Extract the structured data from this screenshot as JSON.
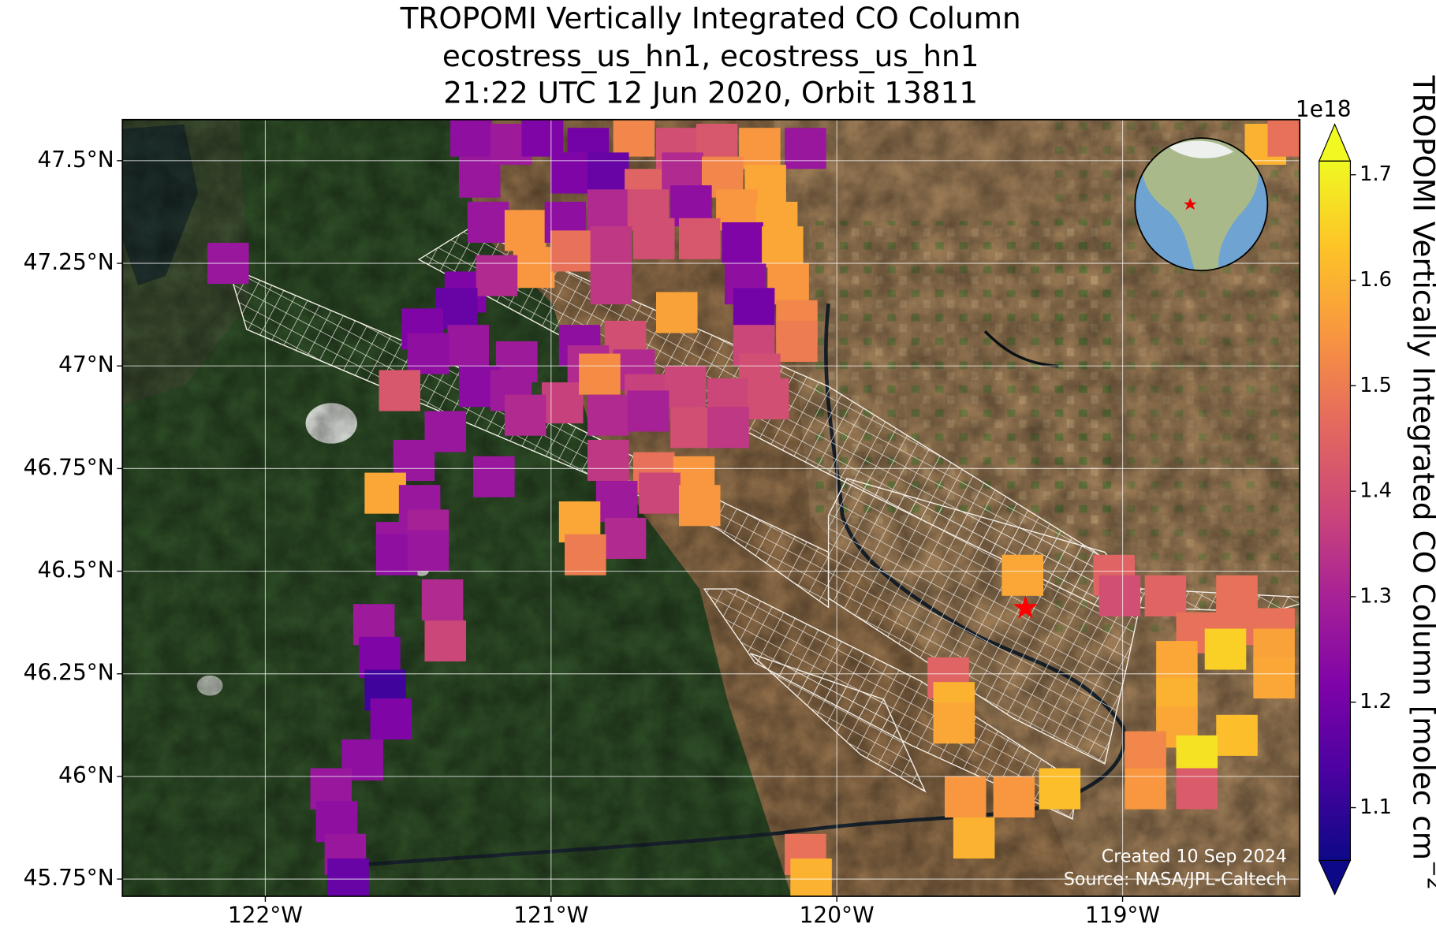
{
  "title": [
    "TROPOMI Vertically Integrated CO Column",
    "ecostress_us_hn1, ecostress_us_hn1",
    "21:22 UTC 12 Jun 2020, Orbit 13811"
  ],
  "map": {
    "xlim": [
      -122.5,
      -118.38
    ],
    "ylim": [
      45.708,
      47.6
    ],
    "xticks": [
      {
        "value": -122,
        "label": "122°W"
      },
      {
        "value": -121,
        "label": "121°W"
      },
      {
        "value": -120,
        "label": "120°W"
      },
      {
        "value": -119,
        "label": "119°W"
      }
    ],
    "yticks": [
      {
        "value": 45.75,
        "label": "45.75°N"
      },
      {
        "value": 46,
        "label": "46°N"
      },
      {
        "value": 46.25,
        "label": "46.25°N"
      },
      {
        "value": 46.5,
        "label": "46.5°N"
      },
      {
        "value": 46.75,
        "label": "46.75°N"
      },
      {
        "value": 47,
        "label": "47°N"
      },
      {
        "value": 47.25,
        "label": "47.25°N"
      },
      {
        "value": 47.5,
        "label": "47.5°N"
      }
    ],
    "grid": true
  },
  "colorbar": {
    "label": "TROPOMI Vertically Integrated CO Column [molec cm",
    "label_exponent": "−2",
    "multiplier": "1e18",
    "colormap": "plasma",
    "lim": [
      1.05,
      1.713
    ],
    "ticks": [
      1.1,
      1.2,
      1.3,
      1.4,
      1.5,
      1.6,
      1.7
    ]
  },
  "site": {
    "lon": -119.34,
    "lat": 46.41,
    "color": "#ff0000"
  },
  "footer": [
    "Created 10 Sep 2024",
    "Source: NASA/JPL-Caltech"
  ],
  "cells": [
    [
      -122.13,
      47.25,
      1.27
    ],
    [
      -121.28,
      47.56,
      1.25
    ],
    [
      -121.25,
      47.46,
      1.27
    ],
    [
      -121.14,
      47.54,
      1.28
    ],
    [
      -121.03,
      47.56,
      1.22
    ],
    [
      -120.87,
      47.53,
      1.2
    ],
    [
      -120.71,
      47.56,
      1.52
    ],
    [
      -120.56,
      47.53,
      1.4
    ],
    [
      -120.42,
      47.54,
      1.42
    ],
    [
      -120.27,
      47.53,
      1.55
    ],
    [
      -120.11,
      47.53,
      1.27
    ],
    [
      -120.93,
      47.47,
      1.22
    ],
    [
      -120.8,
      47.47,
      1.18
    ],
    [
      -120.67,
      47.43,
      1.45
    ],
    [
      -120.54,
      47.47,
      1.32
    ],
    [
      -120.4,
      47.46,
      1.52
    ],
    [
      -120.25,
      47.44,
      1.58
    ],
    [
      -121.22,
      47.35,
      1.27
    ],
    [
      -121.09,
      47.33,
      1.55
    ],
    [
      -120.95,
      47.35,
      1.25
    ],
    [
      -120.8,
      47.38,
      1.32
    ],
    [
      -120.66,
      47.38,
      1.4
    ],
    [
      -120.51,
      47.39,
      1.25
    ],
    [
      -120.35,
      47.38,
      1.55
    ],
    [
      -120.21,
      47.35,
      1.58
    ],
    [
      -121.06,
      47.24,
      1.55
    ],
    [
      -120.93,
      47.28,
      1.48
    ],
    [
      -120.79,
      47.29,
      1.35
    ],
    [
      -120.64,
      47.31,
      1.4
    ],
    [
      -120.48,
      47.31,
      1.42
    ],
    [
      -120.33,
      47.3,
      1.22
    ],
    [
      -120.19,
      47.29,
      1.58
    ],
    [
      -121.3,
      47.18,
      1.22
    ],
    [
      -121.19,
      47.22,
      1.32
    ],
    [
      -120.79,
      47.2,
      1.35
    ],
    [
      -120.32,
      47.2,
      1.25
    ],
    [
      -120.17,
      47.2,
      1.55
    ],
    [
      -121.33,
      47.14,
      1.18
    ],
    [
      -120.56,
      47.13,
      1.57
    ],
    [
      -120.29,
      47.14,
      1.2
    ],
    [
      -120.14,
      47.11,
      1.52
    ],
    [
      -121.45,
      47.09,
      1.22
    ],
    [
      -121.29,
      47.05,
      1.27
    ],
    [
      -120.9,
      47.05,
      1.25
    ],
    [
      -120.74,
      47.06,
      1.4
    ],
    [
      -120.29,
      47.05,
      1.38
    ],
    [
      -120.14,
      47.06,
      1.5
    ],
    [
      -121.43,
      47.03,
      1.25
    ],
    [
      -121.12,
      47.01,
      1.28
    ],
    [
      -120.87,
      47.0,
      1.32
    ],
    [
      -120.71,
      46.99,
      1.32
    ],
    [
      -120.27,
      46.98,
      1.4
    ],
    [
      -121.53,
      46.94,
      1.42
    ],
    [
      -121.25,
      46.95,
      1.24
    ],
    [
      -121.14,
      46.94,
      1.28
    ],
    [
      -120.96,
      46.91,
      1.37
    ],
    [
      -120.83,
      46.98,
      1.53
    ],
    [
      -120.67,
      46.93,
      1.37
    ],
    [
      -120.53,
      46.95,
      1.38
    ],
    [
      -120.38,
      46.92,
      1.38
    ],
    [
      -120.24,
      46.92,
      1.4
    ],
    [
      -121.37,
      46.84,
      1.27
    ],
    [
      -121.09,
      46.88,
      1.32
    ],
    [
      -120.8,
      46.88,
      1.32
    ],
    [
      -120.66,
      46.89,
      1.3
    ],
    [
      -120.51,
      46.85,
      1.4
    ],
    [
      -120.38,
      46.85,
      1.35
    ],
    [
      -121.48,
      46.77,
      1.27
    ],
    [
      -121.2,
      46.73,
      1.27
    ],
    [
      -120.8,
      46.77,
      1.35
    ],
    [
      -120.64,
      46.74,
      1.48
    ],
    [
      -120.5,
      46.73,
      1.55
    ],
    [
      -121.58,
      46.69,
      1.58
    ],
    [
      -121.46,
      46.66,
      1.27
    ],
    [
      -120.77,
      46.67,
      1.28
    ],
    [
      -120.62,
      46.69,
      1.38
    ],
    [
      -120.48,
      46.66,
      1.55
    ],
    [
      -121.54,
      46.57,
      1.27
    ],
    [
      -121.43,
      46.6,
      1.3
    ],
    [
      -120.9,
      46.62,
      1.58
    ],
    [
      -120.74,
      46.58,
      1.32
    ],
    [
      -121.54,
      46.54,
      1.25
    ],
    [
      -121.43,
      46.55,
      1.27
    ],
    [
      -120.88,
      46.54,
      1.5
    ],
    [
      -121.38,
      46.43,
      1.32
    ],
    [
      -121.37,
      46.33,
      1.38
    ],
    [
      -121.62,
      46.37,
      1.28
    ],
    [
      -121.6,
      46.29,
      1.22
    ],
    [
      -121.58,
      46.21,
      1.12
    ],
    [
      -121.56,
      46.14,
      1.22
    ],
    [
      -121.66,
      46.04,
      1.25
    ],
    [
      -121.77,
      45.97,
      1.27
    ],
    [
      -121.75,
      45.89,
      1.25
    ],
    [
      -121.72,
      45.81,
      1.27
    ],
    [
      -121.71,
      45.75,
      1.18
    ],
    [
      -119.35,
      46.49,
      1.58
    ],
    [
      -119.03,
      46.49,
      1.45
    ],
    [
      -119.01,
      46.44,
      1.4
    ],
    [
      -118.85,
      46.44,
      1.45
    ],
    [
      -118.6,
      46.44,
      1.48
    ],
    [
      -118.6,
      46.37,
      1.48
    ],
    [
      -118.74,
      46.35,
      1.48
    ],
    [
      -118.47,
      46.36,
      1.48
    ],
    [
      -118.81,
      46.28,
      1.58
    ],
    [
      -118.64,
      46.31,
      1.65
    ],
    [
      -118.47,
      46.31,
      1.57
    ],
    [
      -118.47,
      46.24,
      1.58
    ],
    [
      -119.61,
      46.24,
      1.45
    ],
    [
      -119.59,
      46.18,
      1.6
    ],
    [
      -119.59,
      46.13,
      1.58
    ],
    [
      -118.81,
      46.19,
      1.6
    ],
    [
      -118.81,
      46.12,
      1.58
    ],
    [
      -118.6,
      46.1,
      1.62
    ],
    [
      -118.92,
      46.06,
      1.52
    ],
    [
      -118.74,
      46.05,
      1.68
    ],
    [
      -118.92,
      45.97,
      1.55
    ],
    [
      -118.74,
      45.97,
      1.43
    ],
    [
      -119.55,
      45.95,
      1.55
    ],
    [
      -119.38,
      45.95,
      1.55
    ],
    [
      -119.22,
      45.97,
      1.62
    ],
    [
      -119.52,
      45.85,
      1.6
    ],
    [
      -120.11,
      45.81,
      1.48
    ],
    [
      -120.09,
      45.75,
      1.6
    ],
    [
      -118.5,
      47.54,
      1.6
    ],
    [
      -118.42,
      47.56,
      1.48
    ]
  ]
}
